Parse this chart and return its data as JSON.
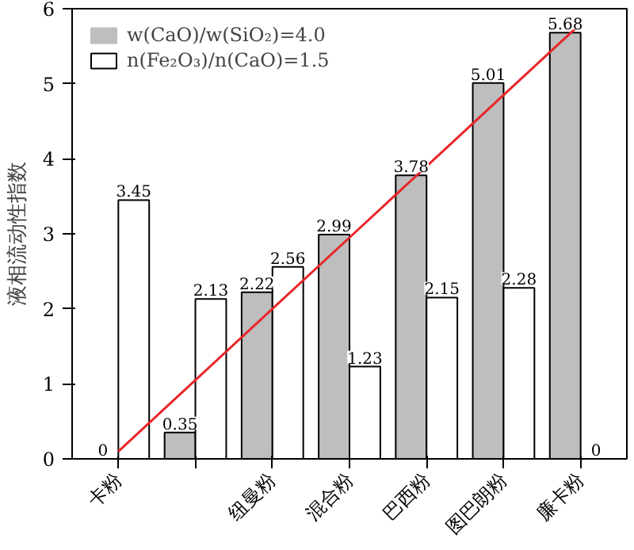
{
  "chart_data": {
    "type": "bar",
    "ylabel": "液相流动性指数",
    "categories": [
      "卡粉",
      null,
      "纽曼粉",
      "混合粉",
      "巴西粉",
      "图巴朗粉",
      "廉卡粉"
    ],
    "series": [
      {
        "name": "w(CaO)/w(SiO₂)=4.0",
        "color": "#bebebe",
        "values": [
          0,
          0.35,
          2.22,
          2.99,
          3.78,
          5.01,
          5.68
        ],
        "value_labels": [
          "0",
          "0.35",
          "2.22",
          "2.99",
          "3.78",
          "5.01",
          "5.68"
        ]
      },
      {
        "name": "n(Fe₂O₃)/n(CaO)=1.5",
        "color": "#ffffff",
        "values": [
          3.45,
          2.13,
          2.56,
          1.23,
          2.15,
          2.28,
          0
        ],
        "value_labels": [
          "3.45",
          "2.13",
          "2.56",
          "1.23",
          "2.15",
          "2.28",
          "0"
        ]
      },
      {
        "type": "line",
        "color": "#e8262a",
        "values": [
          0.1,
          1.05,
          2.0,
          2.95,
          3.9,
          4.85,
          5.8
        ]
      }
    ],
    "ylim": [
      0,
      6
    ],
    "yticks": [
      0,
      1,
      2,
      3,
      4,
      5,
      6
    ],
    "grid": false,
    "legend": "top left"
  }
}
